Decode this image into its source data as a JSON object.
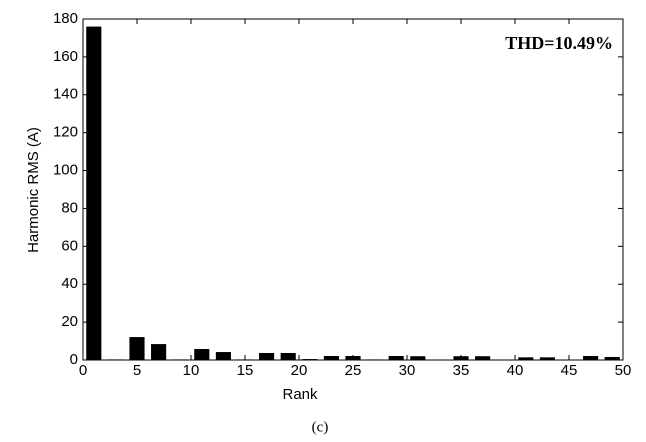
{
  "chart_data": {
    "type": "bar",
    "x": [
      1,
      3,
      5,
      7,
      9,
      11,
      13,
      15,
      17,
      19,
      21,
      23,
      25,
      27,
      29,
      31,
      33,
      35,
      37,
      39,
      41,
      43,
      45,
      47,
      49
    ],
    "values": [
      176,
      0.3,
      12.1,
      8.4,
      0.3,
      5.8,
      4.2,
      0.3,
      3.7,
      3.7,
      0.5,
      2.1,
      2.1,
      0.3,
      2.1,
      2,
      0.2,
      2,
      2,
      0.2,
      1.4,
      1.4,
      0.2,
      2.1,
      1.6
    ],
    "color": "#000000",
    "xlabel": "Rank",
    "ylabel": "Harmonic RMS (A)",
    "annotation": "THD=10.49%",
    "annotation_color": "#e8141c",
    "caption": "(c)",
    "xlim": [
      0,
      50
    ],
    "xticks": [
      0,
      5,
      10,
      15,
      20,
      25,
      30,
      35,
      40,
      45,
      50
    ],
    "ylim": [
      0,
      180
    ],
    "yticks": [
      0,
      20,
      40,
      60,
      80,
      100,
      120,
      140,
      160,
      180
    ],
    "grid": false
  }
}
